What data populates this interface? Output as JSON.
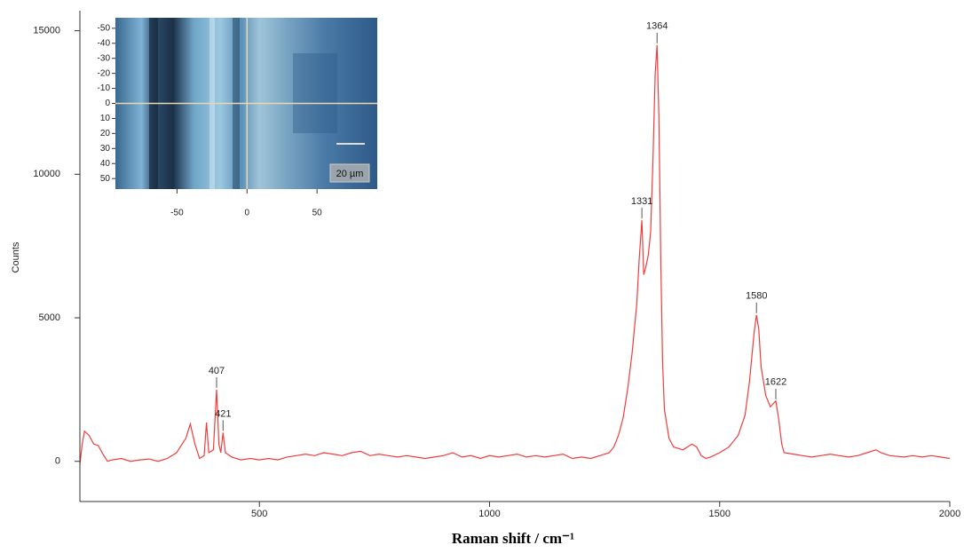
{
  "chart_data": [
    {
      "type": "line",
      "ylabel": "Counts",
      "xlabel": "Raman shift / cm⁻¹",
      "color": "#f03c3c",
      "xlim": [
        110,
        2000
      ],
      "ylim": [
        -1400,
        15700
      ],
      "xticks": [
        500,
        1000,
        1500,
        2000
      ],
      "yticks": [
        0,
        5000,
        10000,
        15000
      ],
      "x": [
        110,
        115,
        120,
        130,
        140,
        150,
        160,
        170,
        180,
        200,
        220,
        240,
        260,
        280,
        300,
        320,
        340,
        350,
        360,
        370,
        380,
        385,
        390,
        400,
        407,
        412,
        416,
        421,
        426,
        440,
        460,
        480,
        500,
        520,
        540,
        560,
        580,
        600,
        620,
        640,
        660,
        680,
        700,
        720,
        740,
        760,
        780,
        800,
        820,
        840,
        860,
        880,
        900,
        920,
        940,
        960,
        980,
        1000,
        1020,
        1040,
        1060,
        1080,
        1100,
        1120,
        1140,
        1160,
        1180,
        1200,
        1220,
        1240,
        1260,
        1270,
        1280,
        1290,
        1300,
        1310,
        1320,
        1325,
        1331,
        1335,
        1340,
        1345,
        1350,
        1355,
        1360,
        1364,
        1368,
        1372,
        1376,
        1380,
        1390,
        1400,
        1420,
        1440,
        1450,
        1460,
        1470,
        1480,
        1500,
        1520,
        1540,
        1555,
        1565,
        1575,
        1580,
        1585,
        1590,
        1600,
        1610,
        1622,
        1628,
        1635,
        1640,
        1660,
        1680,
        1700,
        1720,
        1740,
        1760,
        1780,
        1800,
        1820,
        1840,
        1850,
        1870,
        1900,
        1920,
        1940,
        1960,
        1980,
        2000
      ],
      "values": [
        -100,
        600,
        1050,
        900,
        600,
        550,
        250,
        0,
        50,
        100,
        0,
        50,
        80,
        0,
        100,
        300,
        800,
        1300,
        600,
        100,
        200,
        1350,
        300,
        400,
        2500,
        600,
        300,
        1000,
        300,
        150,
        50,
        100,
        50,
        100,
        50,
        150,
        200,
        250,
        200,
        300,
        250,
        200,
        300,
        350,
        200,
        250,
        200,
        150,
        200,
        150,
        100,
        150,
        200,
        300,
        150,
        200,
        100,
        200,
        150,
        200,
        250,
        150,
        200,
        150,
        200,
        250,
        100,
        150,
        100,
        200,
        300,
        500,
        900,
        1500,
        2500,
        3800,
        5500,
        7000,
        8400,
        6500,
        6800,
        7200,
        8000,
        10500,
        13500,
        14500,
        12000,
        7000,
        3500,
        1800,
        800,
        500,
        400,
        600,
        500,
        200,
        100,
        150,
        300,
        500,
        900,
        1600,
        2800,
        4500,
        5100,
        4600,
        3300,
        2300,
        1900,
        2100,
        1500,
        600,
        300,
        250,
        200,
        150,
        200,
        250,
        200,
        150,
        200,
        300,
        400,
        300,
        200,
        150,
        200,
        150,
        200,
        150,
        100
      ],
      "annotations": [
        {
          "label": "407",
          "x": 407,
          "y": 2500
        },
        {
          "label": "421",
          "x": 421,
          "y": 1000
        },
        {
          "label": "1331",
          "x": 1331,
          "y": 8400
        },
        {
          "label": "1364",
          "x": 1364,
          "y": 14500
        },
        {
          "label": "1580",
          "x": 1580,
          "y": 5100
        },
        {
          "label": "1622",
          "x": 1622,
          "y": 2100
        }
      ]
    },
    {
      "type": "image",
      "xlim": [
        -94,
        93
      ],
      "ylim": [
        57,
        -57
      ],
      "xticks": [
        -50,
        0,
        50
      ],
      "yticks": [
        -50,
        -40,
        -30,
        -20,
        -10,
        0,
        10,
        20,
        30,
        40,
        50
      ],
      "scale_label": "20 µm"
    }
  ]
}
